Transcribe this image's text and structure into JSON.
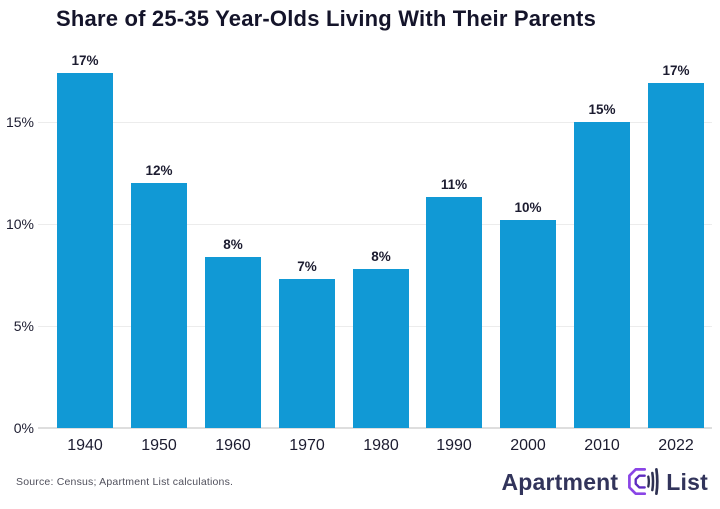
{
  "title": "Share of 25-35 Year-Olds Living With Their Parents",
  "source_note": "Source: Census; Apartment List calculations.",
  "logo": {
    "word_left": "Apartment",
    "word_right": "List"
  },
  "colors": {
    "bar": "#1199d5",
    "title_text": "#14142a",
    "axis_text": "#1c1c30",
    "gridline": "#ececec",
    "baseline": "#dedede",
    "source_text": "#50505c",
    "logo_text": "#32345b",
    "logo_purple": "#8a45e6",
    "logo_purple_dark": "#5d2bbf",
    "logo_navy": "#2e3153"
  },
  "chart_data": {
    "type": "bar",
    "title": "Share of 25-35 Year-Olds Living With Their Parents",
    "categories": [
      "1940",
      "1950",
      "1960",
      "1970",
      "1980",
      "1990",
      "2000",
      "2010",
      "2022"
    ],
    "values": [
      17.4,
      12.0,
      8.4,
      7.3,
      7.8,
      11.3,
      10.2,
      15.0,
      16.9
    ],
    "bar_labels": [
      "17%",
      "12%",
      "8%",
      "7%",
      "8%",
      "11%",
      "10%",
      "15%",
      "17%"
    ],
    "xlabel": "",
    "ylabel": "",
    "ylim": [
      0,
      18
    ],
    "yticks": [
      0,
      5,
      10,
      15
    ],
    "ytick_labels": [
      "0%",
      "5%",
      "10%",
      "15%"
    ],
    "grid": "horizontal",
    "legend": "none",
    "bar_color": "#1199d5"
  }
}
